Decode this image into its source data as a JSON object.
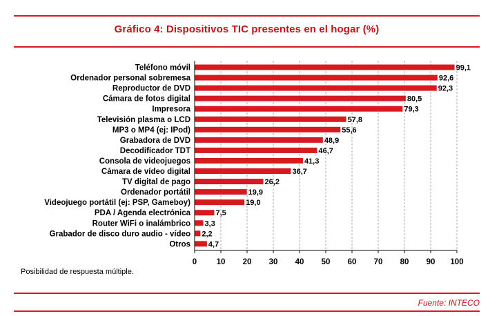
{
  "header": {
    "title": "Gráfico 4: Dispositivos TIC presentes en el hogar (%)"
  },
  "footer": {
    "note": "Posibilidad de respuesta múltiple.",
    "source": "Fuente: INTECO"
  },
  "colors": {
    "accent": "#d71920",
    "bar": "#d71920",
    "grid": "#999999"
  },
  "chart_data": {
    "type": "bar",
    "orientation": "horizontal",
    "title": "Gráfico 4: Dispositivos TIC presentes en el hogar (%)",
    "xlabel": "",
    "ylabel": "",
    "xlim": [
      0,
      100
    ],
    "grid": "vertical dashed",
    "categories": [
      "Teléfono móvil",
      "Ordenador personal sobremesa",
      "Reproductor de DVD",
      "Cámara de fotos digital",
      "Impresora",
      "Televisión plasma o LCD",
      "MP3 o MP4 (ej: IPod)",
      "Grabadora de DVD",
      "Decodificador TDT",
      "Consola de videojuegos",
      "Cámara de vídeo digital",
      "TV digital de pago",
      "Ordenador portátil",
      "Videojuego portátil (ej: PSP, Gameboy)",
      "PDA / Agenda electrónica",
      "Router WiFi o inalámbrico",
      "Grabador de disco duro audio - vídeo",
      "Otros"
    ],
    "values": [
      99.1,
      92.6,
      92.3,
      80.5,
      79.3,
      57.8,
      55.6,
      48.9,
      46.7,
      41.3,
      36.7,
      26.2,
      19.9,
      19.0,
      7.5,
      3.3,
      2.2,
      4.7
    ],
    "value_labels": [
      "99,1",
      "92,6",
      "92,3",
      "80,5",
      "79,3",
      "57,8",
      "55,6",
      "48,9",
      "46,7",
      "41,3",
      "36,7",
      "26,2",
      "19,9",
      "19,0",
      "7,5",
      "3,3",
      "2,2",
      "4,7"
    ],
    "ticks": [
      0,
      10,
      20,
      30,
      40,
      50,
      60,
      70,
      80,
      90,
      100
    ],
    "tick_labels": [
      "0",
      "10",
      "20",
      "30",
      "40",
      "50",
      "60",
      "70",
      "80",
      "90",
      "100"
    ]
  }
}
